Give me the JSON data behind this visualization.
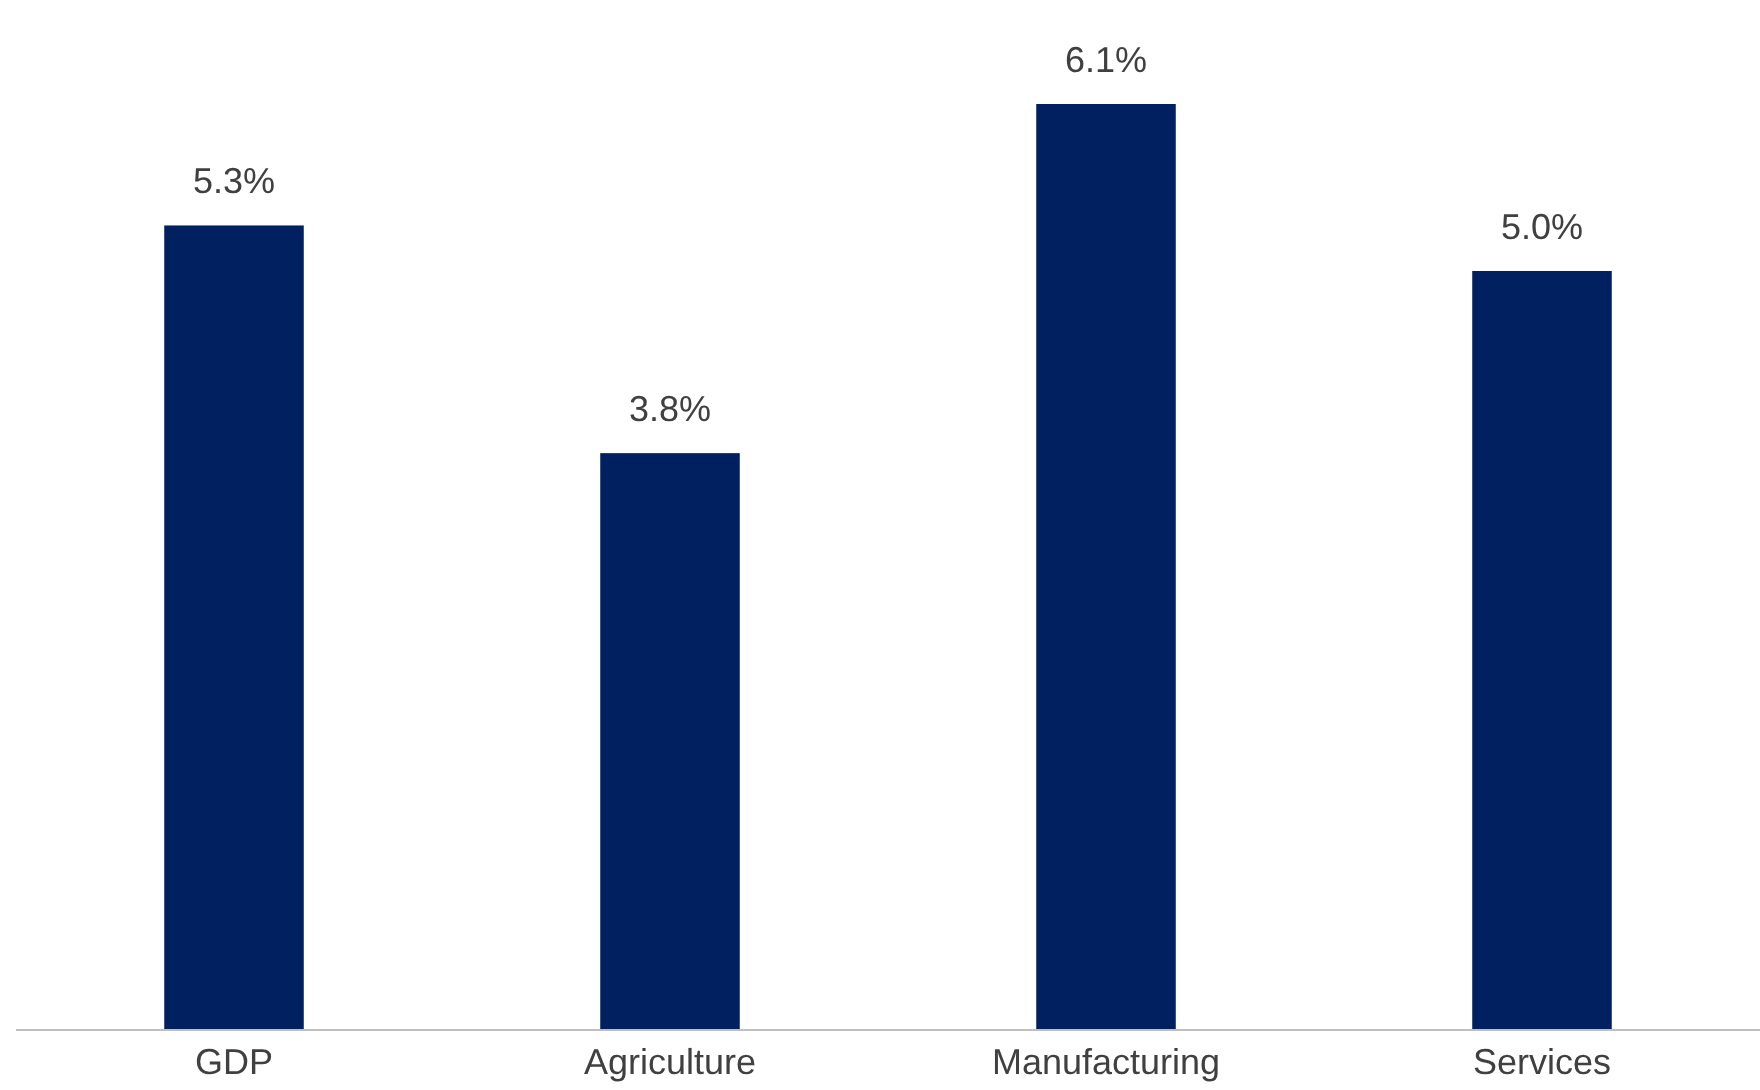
{
  "chart_data": {
    "type": "bar",
    "categories": [
      "GDP",
      "Agriculture",
      "Manufacturing",
      "Services"
    ],
    "values": [
      5.3,
      3.8,
      6.1,
      5.0
    ],
    "value_labels": [
      "5.3%",
      "3.8%",
      "6.1%",
      "5.0%"
    ],
    "color": "#002060"
  }
}
